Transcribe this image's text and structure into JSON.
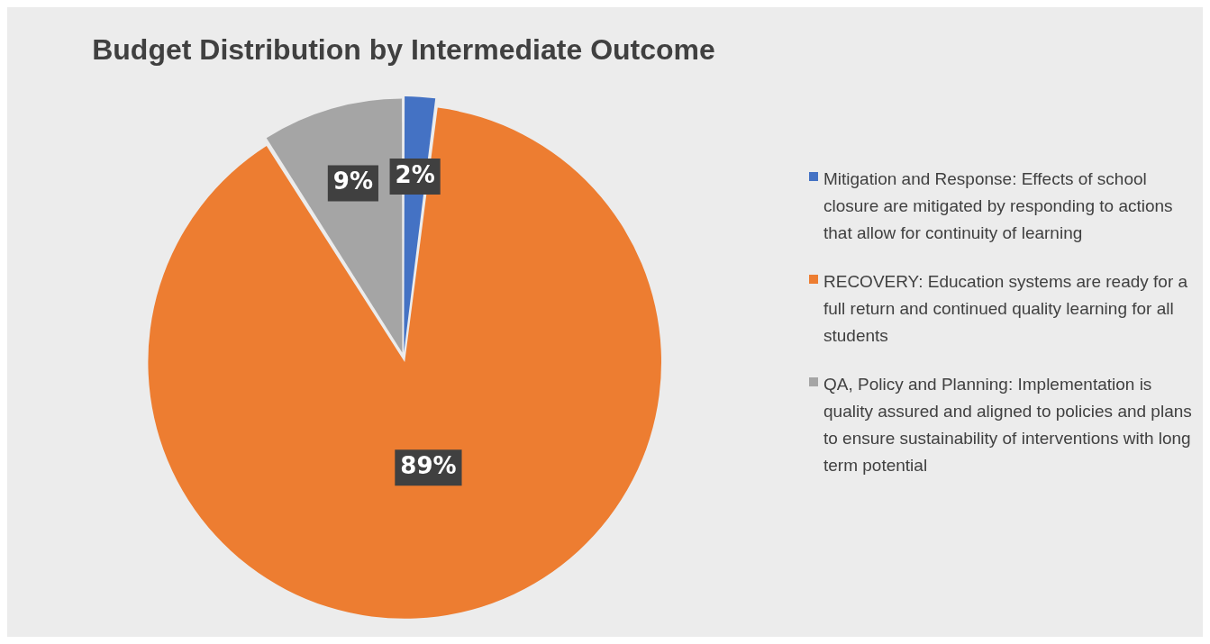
{
  "chart_data": {
    "type": "pie",
    "title": "Budget Distribution by Intermediate Outcome",
    "categories": [
      "Mitigation and Response: Effects of school closure are mitigated by responding to actions that allow for continuity of learning",
      "RECOVERY: Education systems are ready for a full return and continued quality learning for all students",
      "QA, Policy and Planning: Implementation is quality assured and aligned to policies and plans to ensure sustainability of interventions with long term potential"
    ],
    "values": [
      2,
      89,
      9
    ],
    "colors": [
      "#4472c4",
      "#ed7d31",
      "#a5a5a5"
    ],
    "value_labels": [
      "2%",
      "89%",
      "9%"
    ],
    "legend": "right"
  }
}
